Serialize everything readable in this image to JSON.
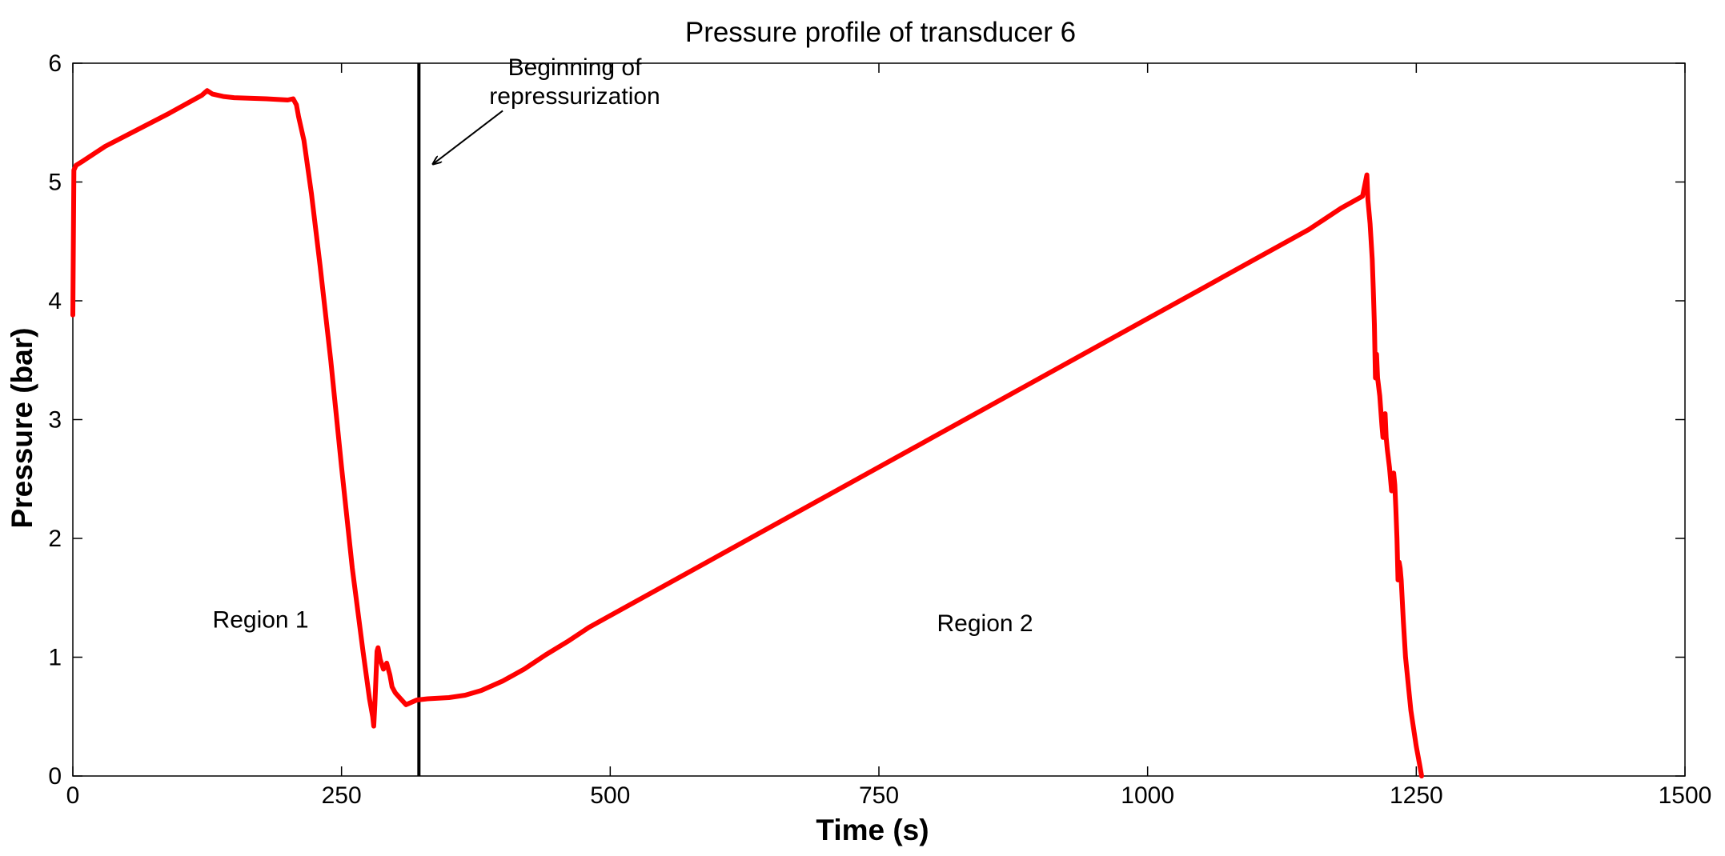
{
  "chart_data": {
    "type": "line",
    "title": "Pressure profile of transducer 6",
    "xlabel": "Time (s)",
    "ylabel": "Pressure (bar)",
    "xlim": [
      0,
      1500
    ],
    "ylim": [
      0,
      6
    ],
    "xticks": [
      0,
      250,
      500,
      750,
      1000,
      1250,
      1500
    ],
    "yticks": [
      0,
      1,
      2,
      3,
      4,
      5,
      6
    ],
    "grid": false,
    "series": [
      {
        "name": "Transducer 6",
        "color": "#ff0000",
        "x": [
          0,
          1,
          3,
          10,
          30,
          60,
          90,
          110,
          120,
          125,
          130,
          140,
          150,
          180,
          200,
          205,
          208,
          210,
          215,
          222,
          230,
          240,
          250,
          260,
          270,
          276,
          279,
          280,
          281,
          283,
          284,
          286,
          289,
          292,
          295,
          297,
          300,
          305,
          310,
          320,
          330,
          350,
          365,
          380,
          400,
          420,
          440,
          460,
          480,
          500,
          550,
          600,
          650,
          700,
          750,
          800,
          850,
          900,
          950,
          1000,
          1050,
          1100,
          1150,
          1180,
          1200,
          1204,
          1205,
          1207,
          1209,
          1210,
          1211,
          1212,
          1213,
          1214,
          1216,
          1218,
          1219,
          1221,
          1222,
          1223,
          1225,
          1227,
          1228,
          1229,
          1230,
          1231,
          1232,
          1233,
          1234,
          1235,
          1236,
          1238,
          1240,
          1245,
          1250,
          1253,
          1255
        ],
        "y": [
          3.88,
          5.1,
          5.14,
          5.18,
          5.3,
          5.44,
          5.58,
          5.68,
          5.73,
          5.77,
          5.74,
          5.72,
          5.71,
          5.7,
          5.69,
          5.7,
          5.65,
          5.55,
          5.35,
          4.9,
          4.3,
          3.5,
          2.6,
          1.75,
          1.05,
          0.65,
          0.5,
          0.42,
          0.6,
          1.05,
          1.08,
          0.98,
          0.9,
          0.95,
          0.85,
          0.75,
          0.7,
          0.65,
          0.6,
          0.64,
          0.65,
          0.66,
          0.68,
          0.72,
          0.8,
          0.9,
          1.02,
          1.13,
          1.25,
          1.35,
          1.6,
          1.85,
          2.1,
          2.35,
          2.6,
          2.85,
          3.1,
          3.35,
          3.6,
          3.85,
          4.1,
          4.35,
          4.6,
          4.78,
          4.88,
          5.06,
          4.85,
          4.65,
          4.35,
          4.1,
          3.8,
          3.35,
          3.55,
          3.35,
          3.2,
          2.95,
          2.85,
          3.05,
          2.85,
          2.75,
          2.6,
          2.4,
          2.5,
          2.55,
          2.45,
          2.25,
          2.0,
          1.65,
          1.8,
          1.75,
          1.65,
          1.3,
          1.0,
          0.55,
          0.25,
          0.1,
          0.0
        ]
      }
    ],
    "vline": {
      "x": 322,
      "color": "#000000"
    },
    "annotations": [
      {
        "text_lines": [
          "Beginning of",
          "repressurization"
        ],
        "x": 467,
        "y": 5.9,
        "arrow_to": [
          335,
          5.15
        ],
        "arrow_from": [
          400,
          5.6
        ]
      },
      {
        "text": "Region 1",
        "x": 130,
        "y": 1.25
      },
      {
        "text": "Region 2",
        "x": 804,
        "y": 1.22
      }
    ]
  }
}
